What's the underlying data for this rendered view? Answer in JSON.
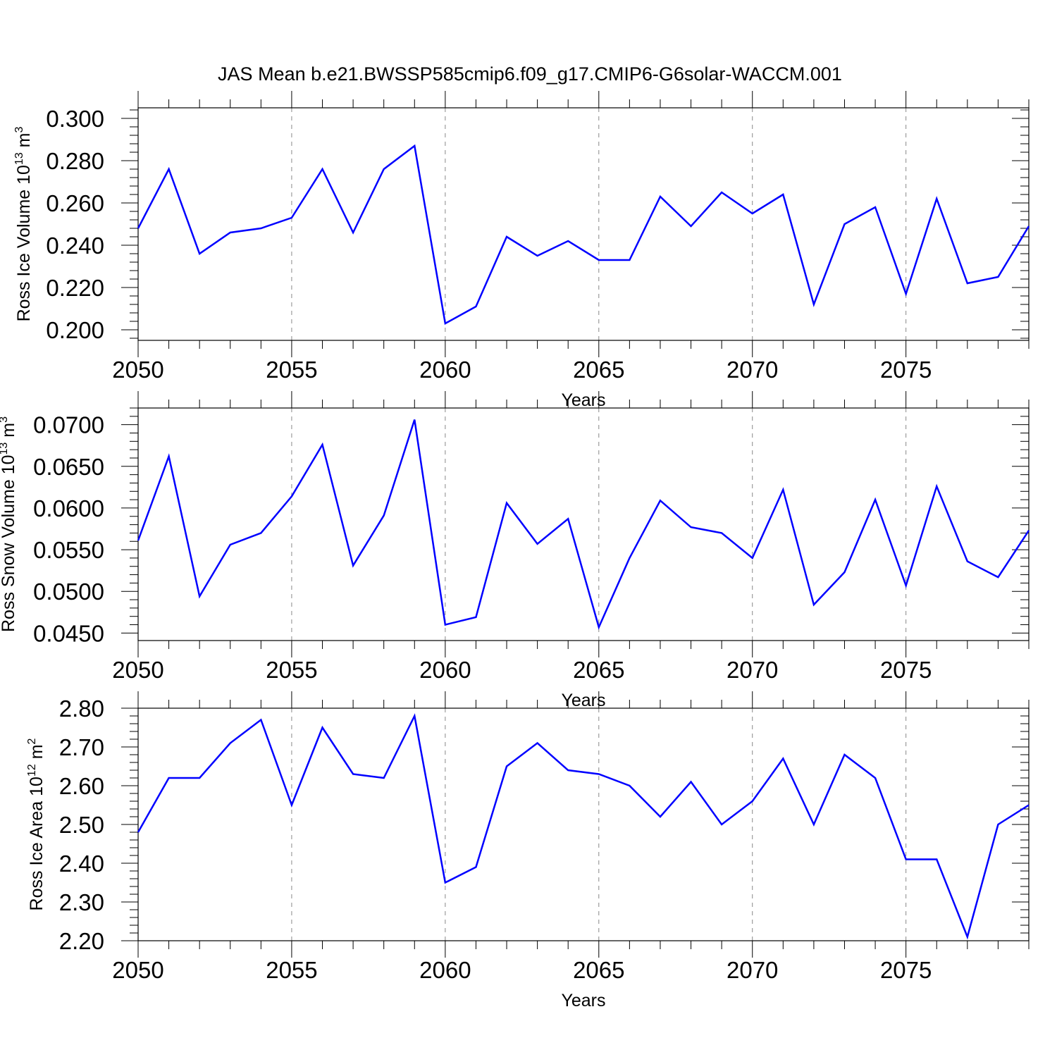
{
  "title": "JAS Mean b.e21.BWSSP585cmip6.f09_g17.CMIP6-G6solar-WACCM.001",
  "series_color": "#0000ff",
  "chart_data": [
    {
      "type": "line",
      "xlabel": "Years",
      "ylabel": {
        "main": "Ross Ice Volume 10",
        "sup": "13",
        "unit": " m",
        "unit_sup": "3"
      },
      "xlim": [
        2050,
        2079
      ],
      "ylim": [
        0.195,
        0.305
      ],
      "x_ticks": [
        "2050",
        "2055",
        "2060",
        "2065",
        "2070",
        "2075"
      ],
      "y_ticks": [
        "0.200",
        "0.220",
        "0.240",
        "0.260",
        "0.280",
        "0.300"
      ],
      "x": [
        2050,
        2051,
        2052,
        2053,
        2054,
        2055,
        2056,
        2057,
        2058,
        2059,
        2060,
        2061,
        2062,
        2063,
        2064,
        2065,
        2066,
        2067,
        2068,
        2069,
        2070,
        2071,
        2072,
        2073,
        2074,
        2075,
        2076,
        2077,
        2078,
        2079
      ],
      "values": [
        0.248,
        0.276,
        0.236,
        0.246,
        0.248,
        0.253,
        0.276,
        0.246,
        0.276,
        0.287,
        0.203,
        0.211,
        0.244,
        0.235,
        0.242,
        0.233,
        0.233,
        0.263,
        0.249,
        0.265,
        0.255,
        0.264,
        0.212,
        0.25,
        0.258,
        0.217,
        0.262,
        0.222,
        0.225,
        0.249
      ]
    },
    {
      "type": "line",
      "xlabel": "Years",
      "ylabel": {
        "main": "Ross Snow Volume 10",
        "sup": "13",
        "unit": " m",
        "unit_sup": "3"
      },
      "xlim": [
        2050,
        2079
      ],
      "ylim": [
        0.0441,
        0.072
      ],
      "x_ticks": [
        "2050",
        "2055",
        "2060",
        "2065",
        "2070",
        "2075"
      ],
      "y_ticks": [
        "0.0450",
        "0.0500",
        "0.0550",
        "0.0600",
        "0.0650",
        "0.0700"
      ],
      "x": [
        2050,
        2051,
        2052,
        2053,
        2054,
        2055,
        2056,
        2057,
        2058,
        2059,
        2060,
        2061,
        2062,
        2063,
        2064,
        2065,
        2066,
        2067,
        2068,
        2069,
        2070,
        2071,
        2072,
        2073,
        2074,
        2075,
        2076,
        2077,
        2078,
        2079
      ],
      "values": [
        0.0561,
        0.0662,
        0.0494,
        0.0556,
        0.057,
        0.0614,
        0.0676,
        0.0531,
        0.0591,
        0.0706,
        0.046,
        0.0469,
        0.0606,
        0.0557,
        0.0587,
        0.0457,
        0.054,
        0.0609,
        0.0577,
        0.057,
        0.054,
        0.0622,
        0.0484,
        0.0523,
        0.061,
        0.0507,
        0.0626,
        0.0536,
        0.0517,
        0.0573
      ]
    },
    {
      "type": "line",
      "xlabel": "Years",
      "ylabel": {
        "main": "Ross Ice Area 10",
        "sup": "12",
        "unit": " m",
        "unit_sup": "2"
      },
      "xlim": [
        2050,
        2079
      ],
      "ylim": [
        2.2,
        2.8
      ],
      "x_ticks": [
        "2050",
        "2055",
        "2060",
        "2065",
        "2070",
        "2075"
      ],
      "y_ticks": [
        "2.20",
        "2.30",
        "2.40",
        "2.50",
        "2.60",
        "2.70",
        "2.80"
      ],
      "x": [
        2050,
        2051,
        2052,
        2053,
        2054,
        2055,
        2056,
        2057,
        2058,
        2059,
        2060,
        2061,
        2062,
        2063,
        2064,
        2065,
        2066,
        2067,
        2068,
        2069,
        2070,
        2071,
        2072,
        2073,
        2074,
        2075,
        2076,
        2077,
        2078,
        2079
      ],
      "values": [
        2.48,
        2.62,
        2.62,
        2.71,
        2.77,
        2.55,
        2.75,
        2.63,
        2.62,
        2.78,
        2.35,
        2.39,
        2.65,
        2.71,
        2.64,
        2.63,
        2.6,
        2.52,
        2.61,
        2.5,
        2.56,
        2.67,
        2.5,
        2.68,
        2.62,
        2.41,
        2.41,
        2.21,
        2.5,
        2.55
      ]
    }
  ]
}
